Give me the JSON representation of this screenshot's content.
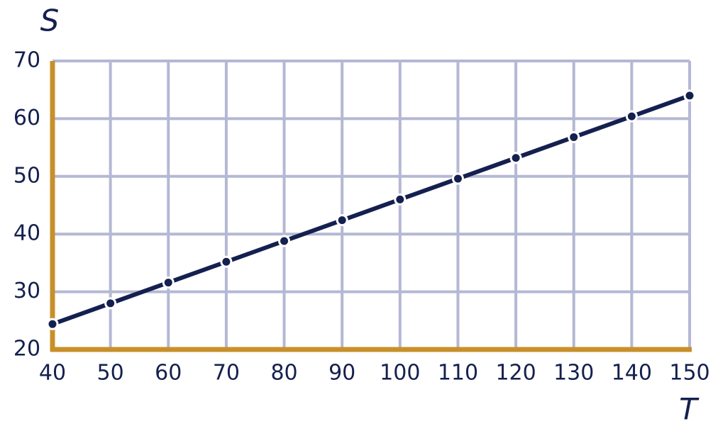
{
  "chart_data": {
    "type": "line",
    "x_label": "T",
    "y_label": "S",
    "x": [
      40,
      50,
      60,
      70,
      80,
      90,
      100,
      110,
      120,
      130,
      140,
      150
    ],
    "values": [
      24.4,
      28,
      31.6,
      35.2,
      38.8,
      42.4,
      46,
      49.6,
      53.2,
      56.8,
      60.4,
      64
    ],
    "color": "#14204f",
    "axis_color": "#c8902a",
    "grid_color": "#b4b8d4",
    "xlim": [
      40,
      150
    ],
    "xticks": [
      40,
      50,
      60,
      70,
      80,
      90,
      100,
      110,
      120,
      130,
      140,
      150
    ],
    "ylim": [
      20,
      70
    ],
    "yticks": [
      20,
      30,
      40,
      50,
      60,
      70
    ],
    "grid": true,
    "markers": true
  }
}
